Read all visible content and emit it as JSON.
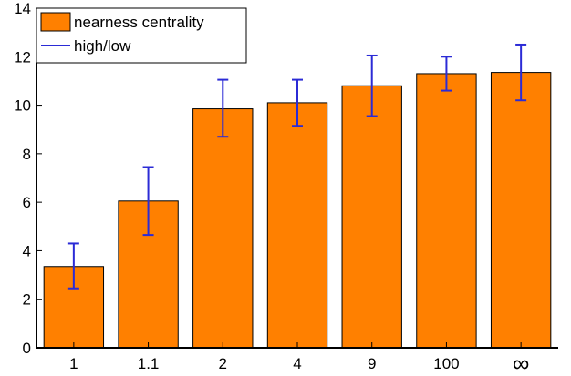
{
  "chart_data": {
    "type": "bar",
    "categories": [
      "1",
      "1.1",
      "2",
      "4",
      "9",
      "100",
      "∞"
    ],
    "series": [
      {
        "name": "nearness centrality",
        "values": [
          3.35,
          6.05,
          9.85,
          10.1,
          10.8,
          11.3,
          11.35
        ],
        "high": [
          4.3,
          7.45,
          11.05,
          11.05,
          12.05,
          12.0,
          12.5
        ],
        "low": [
          2.45,
          4.65,
          8.7,
          9.15,
          9.55,
          10.6,
          10.2
        ]
      }
    ],
    "error_bar_label": "high/low",
    "yticks": [
      "0",
      "2",
      "4",
      "6",
      "8",
      "10",
      "12",
      "14"
    ],
    "ylim": [
      0,
      14
    ],
    "title": "",
    "xlabel": "",
    "ylabel": "",
    "grid": false,
    "legend_position": "top-left",
    "colors": {
      "bar": "#ff8000",
      "error": "#2b2bd6",
      "axis": "#000000"
    }
  }
}
